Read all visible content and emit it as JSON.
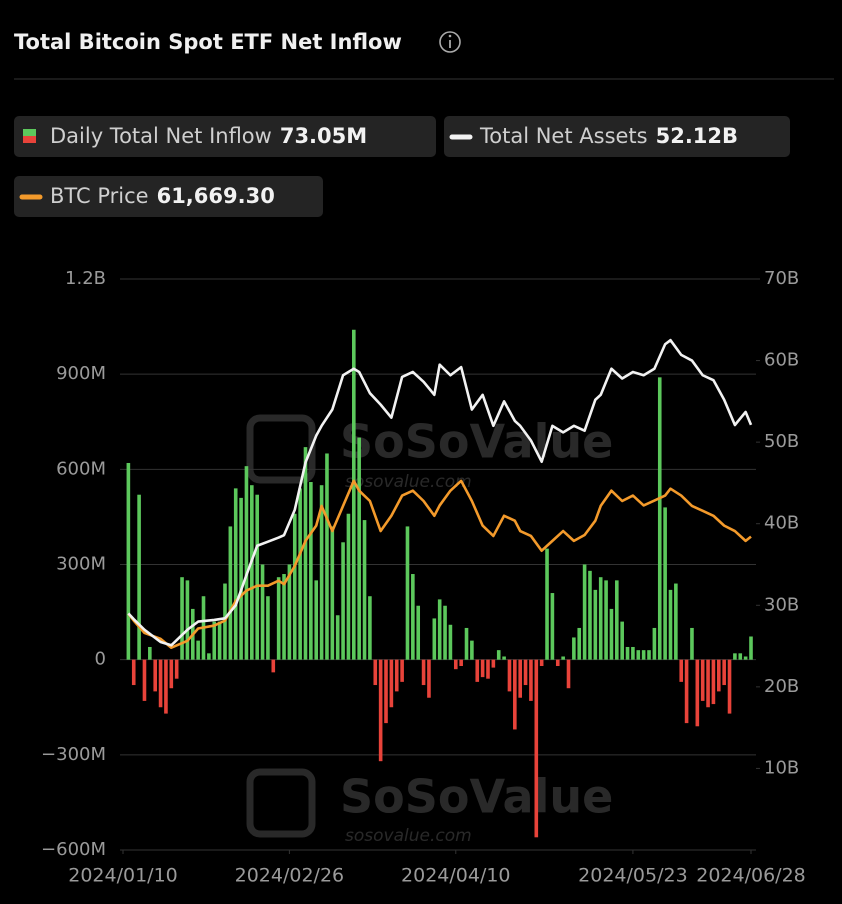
{
  "chart_data": {
    "type": "bar",
    "title": "Total Bitcoin Spot ETF Net Inflow",
    "watermark": {
      "brand": "SoSoValue",
      "url": "sosovalue.com"
    },
    "xlim": [
      -1,
      116
    ],
    "xticks": [
      {
        "value": -1,
        "label": "2024/01/10"
      },
      {
        "value": 30,
        "label": "2024/02/26"
      },
      {
        "value": 61,
        "label": "2024/04/10"
      },
      {
        "value": 94,
        "label": "2024/05/23"
      },
      {
        "value": 116,
        "label": "2024/06/28"
      }
    ],
    "ylim": [
      -600,
      1200
    ],
    "yticks": [
      {
        "value": 1200,
        "label": "1.2B"
      },
      {
        "value": 900,
        "label": "900M"
      },
      {
        "value": 600,
        "label": "600M"
      },
      {
        "value": 300,
        "label": "300M"
      },
      0,
      {
        "value": -300,
        "label": "−300M"
      },
      {
        "value": -600,
        "label": "−600M"
      }
    ],
    "y2lim": [
      0,
      70
    ],
    "y2ticks": [
      {
        "value": 70,
        "label": "70B"
      },
      {
        "value": 60,
        "label": "60B"
      },
      {
        "value": 50,
        "label": "50B"
      },
      {
        "value": 40,
        "label": "40B"
      },
      {
        "value": 30,
        "label": "30B"
      },
      {
        "value": 20,
        "label": "20B"
      },
      {
        "value": 10,
        "label": "10B"
      }
    ],
    "y3lim": [
      -2000,
      114000
    ],
    "grid": true,
    "series": [
      {
        "name": "Daily Total Net Inflow",
        "type": "bar",
        "color": "#5cc85c",
        "negative_color": "#e8433a",
        "latest_label": "73.05M",
        "values": [
          620,
          -80,
          520,
          -130,
          40,
          -100,
          -150,
          -170,
          -90,
          -60,
          260,
          250,
          160,
          60,
          200,
          20,
          120,
          120,
          240,
          420,
          540,
          510,
          610,
          550,
          520,
          300,
          200,
          -40,
          260,
          270,
          300,
          460,
          540,
          670,
          560,
          250,
          550,
          650,
          420,
          140,
          370,
          460,
          1040,
          700,
          440,
          200,
          -80,
          -320,
          -200,
          -150,
          -100,
          -70,
          420,
          270,
          170,
          -80,
          -120,
          130,
          190,
          170,
          110,
          -30,
          -20,
          100,
          60,
          -70,
          -55,
          -60,
          -25,
          30,
          10,
          -100,
          -220,
          -120,
          -80,
          -130,
          -560,
          -20,
          350,
          210,
          -20,
          10,
          -90,
          70,
          100,
          300,
          280,
          220,
          260,
          250,
          160,
          250,
          120,
          40,
          40,
          30,
          30,
          30,
          100,
          890,
          480,
          220,
          240,
          -70,
          -200,
          100,
          -210,
          -130,
          -150,
          -140,
          -100,
          -80,
          -170,
          20,
          20,
          10,
          73.05
        ]
      },
      {
        "name": "Total Net Assets",
        "type": "line",
        "axis": "y2",
        "color": "#f2f2f2",
        "latest_label": "52.12B",
        "x": [
          0,
          1,
          3,
          6,
          8,
          11,
          13,
          16,
          18,
          20,
          22,
          24,
          26,
          28,
          29,
          31,
          33,
          35,
          36,
          38,
          40,
          42,
          43,
          45,
          47,
          49,
          51,
          53,
          55,
          57,
          58,
          60,
          62,
          64,
          66,
          68,
          70,
          72,
          73,
          75,
          77,
          79,
          81,
          83,
          85,
          87,
          88,
          90,
          92,
          94,
          96,
          98,
          100,
          101,
          103,
          105,
          107,
          109,
          111,
          113,
          115,
          116
        ],
        "values": [
          29.0,
          28.3,
          27.0,
          25.5,
          25.1,
          27.0,
          28.0,
          28.2,
          28.4,
          30.0,
          33.7,
          37.3,
          37.8,
          38.3,
          38.6,
          41.7,
          47.5,
          50.8,
          52.0,
          54.0,
          58.2,
          59.0,
          58.6,
          56.0,
          54.6,
          53.0,
          58.0,
          58.6,
          57.4,
          55.8,
          59.5,
          58.2,
          59.2,
          54.0,
          55.8,
          52.0,
          55.0,
          52.6,
          52.0,
          50.2,
          47.6,
          52.0,
          51.2,
          52.0,
          51.4,
          55.2,
          55.8,
          59.0,
          57.8,
          58.6,
          58.2,
          59.0,
          62.0,
          62.5,
          60.7,
          60.0,
          58.2,
          57.6,
          55.2,
          52.1,
          53.7,
          52.12
        ]
      },
      {
        "name": "BTC Price",
        "type": "line",
        "axis": "y3",
        "color": "#f39a2b",
        "latest_label": "61,669.30",
        "x": [
          0,
          1,
          3,
          6,
          8,
          11,
          13,
          16,
          18,
          20,
          22,
          24,
          26,
          28,
          29,
          31,
          33,
          35,
          36,
          38,
          40,
          42,
          43,
          45,
          47,
          49,
          51,
          53,
          55,
          57,
          58,
          60,
          62,
          64,
          66,
          68,
          70,
          72,
          73,
          75,
          77,
          79,
          81,
          83,
          85,
          87,
          88,
          90,
          92,
          94,
          96,
          98,
          100,
          101,
          103,
          105,
          107,
          109,
          111,
          113,
          115,
          116
        ],
        "values": [
          46000,
          44600,
          42100,
          40900,
          39100,
          40500,
          43000,
          43600,
          44600,
          48600,
          50700,
          51700,
          51700,
          52700,
          52000,
          55700,
          60800,
          63900,
          67900,
          62800,
          67900,
          73000,
          71000,
          68900,
          62800,
          65900,
          70000,
          71000,
          68900,
          65900,
          68000,
          71000,
          73000,
          68900,
          63900,
          61800,
          65900,
          64900,
          62800,
          61800,
          58800,
          60800,
          62800,
          60800,
          62000,
          64900,
          67900,
          71000,
          68900,
          70000,
          68000,
          69000,
          70000,
          71400,
          70000,
          67900,
          66900,
          65900,
          63900,
          62800,
          60800,
          61669.3
        ]
      }
    ]
  }
}
